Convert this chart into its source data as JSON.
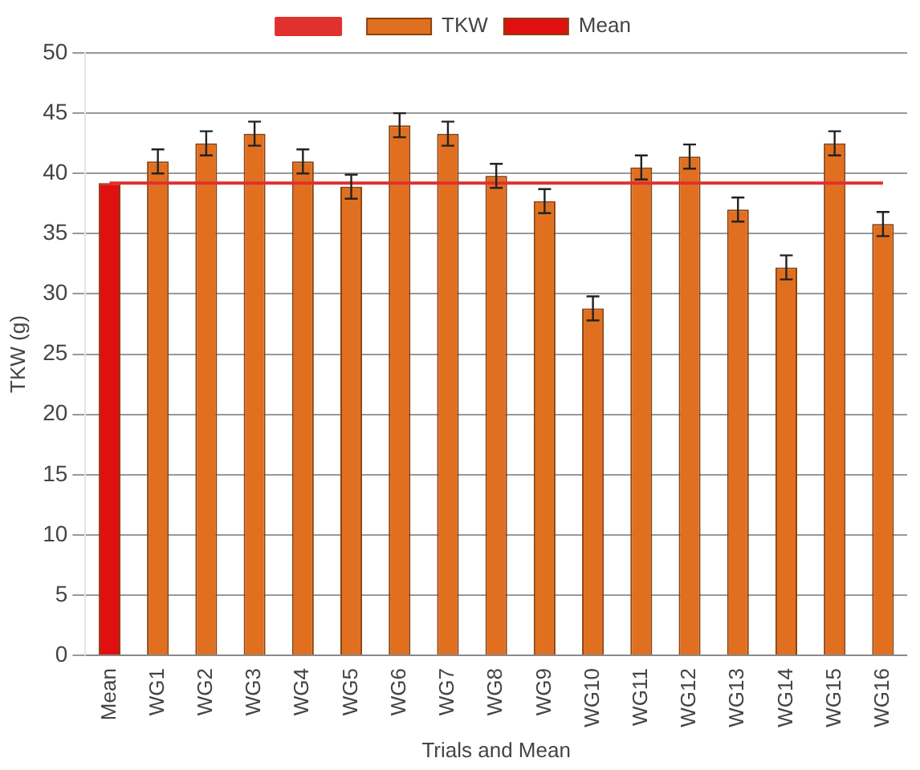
{
  "chart_data": {
    "type": "bar",
    "ylabel": "TKW (g)",
    "xlabel": "Trials and Mean",
    "categories": [
      "Mean",
      "WG1",
      "WG2",
      "WG3",
      "WG4",
      "WG5",
      "WG6",
      "WG7",
      "WG8",
      "WG9",
      "WG10",
      "WG11",
      "WG12",
      "WG13",
      "WG14",
      "WG15",
      "WG16"
    ],
    "series": [
      {
        "name": "TKW",
        "color": "#e07020",
        "values": [
          null,
          41,
          42.5,
          43.3,
          41,
          38.9,
          44,
          43.3,
          39.8,
          37.7,
          28.8,
          40.5,
          41.4,
          37,
          32.2,
          42.5,
          35.8
        ],
        "errors": [
          null,
          1,
          1,
          1,
          1,
          1,
          1,
          1,
          1,
          1,
          1,
          1,
          1,
          1,
          1,
          1,
          1
        ]
      },
      {
        "name": "Mean",
        "color": "#e01010",
        "values": [
          39.2,
          null,
          null,
          null,
          null,
          null,
          null,
          null,
          null,
          null,
          null,
          null,
          null,
          null,
          null,
          null,
          null
        ]
      },
      {
        "type": "line",
        "color": "#e03030",
        "values": [
          39.2,
          39.2,
          39.2,
          39.2,
          39.2,
          39.2,
          39.2,
          39.2,
          39.2,
          39.2,
          39.2,
          39.2,
          39.2,
          39.2,
          39.2,
          39.2,
          39.2
        ]
      }
    ],
    "ylim": [
      0,
      50
    ],
    "yticks": [
      0,
      5,
      10,
      15,
      20,
      25,
      30,
      35,
      40,
      45,
      50
    ],
    "grid": "y",
    "legend": "top"
  }
}
